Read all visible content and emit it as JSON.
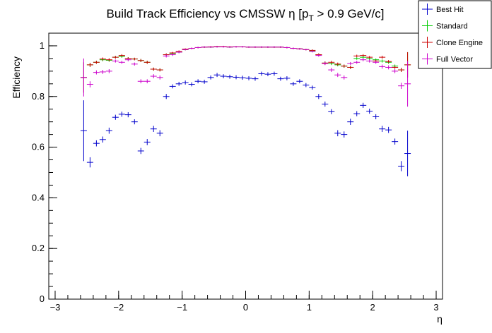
{
  "chart_data": {
    "type": "scatter",
    "title_main": "Build Track Efficiency vs CMSSW η [p",
    "title_sub": "T",
    "title_tail": " > 0.9 GeV/c]",
    "xlabel": "η",
    "ylabel": "Efficiency",
    "xlim": [
      -3.1,
      3.1
    ],
    "ylim": [
      0,
      1.05
    ],
    "xticks": [
      -3,
      -2,
      -1,
      0,
      1,
      2,
      3
    ],
    "xtick_labels": [
      "−3",
      "−2",
      "−1",
      "0",
      "1",
      "2",
      "3"
    ],
    "yticks": [
      0,
      0.2,
      0.4,
      0.6,
      0.8,
      1
    ],
    "ytick_labels": [
      "0",
      "0.2",
      "0.4",
      "0.6",
      "0.8",
      "1"
    ],
    "grid": false,
    "legend_position": "top-right",
    "x": [
      -2.55,
      -2.45,
      -2.35,
      -2.25,
      -2.15,
      -2.05,
      -1.95,
      -1.85,
      -1.75,
      -1.65,
      -1.55,
      -1.45,
      -1.35,
      -1.25,
      -1.15,
      -1.05,
      -0.95,
      -0.85,
      -0.75,
      -0.65,
      -0.55,
      -0.45,
      -0.35,
      -0.25,
      -0.15,
      -0.05,
      0.05,
      0.15,
      0.25,
      0.35,
      0.45,
      0.55,
      0.65,
      0.75,
      0.85,
      0.95,
      1.05,
      1.15,
      1.25,
      1.35,
      1.45,
      1.55,
      1.65,
      1.75,
      1.85,
      1.95,
      2.05,
      2.15,
      2.25,
      2.35,
      2.45,
      2.55
    ],
    "series": [
      {
        "name": "Best Hit",
        "color": "#0000cc",
        "values": [
          0.665,
          0.54,
          0.615,
          0.63,
          0.665,
          0.718,
          0.73,
          0.728,
          0.7,
          0.585,
          0.62,
          0.672,
          0.655,
          0.8,
          0.84,
          0.85,
          0.855,
          0.848,
          0.86,
          0.858,
          0.875,
          0.885,
          0.88,
          0.878,
          0.876,
          0.874,
          0.872,
          0.87,
          0.89,
          0.888,
          0.89,
          0.87,
          0.872,
          0.85,
          0.86,
          0.845,
          0.835,
          0.8,
          0.77,
          0.74,
          0.655,
          0.65,
          0.7,
          0.732,
          0.765,
          0.742,
          0.72,
          0.672,
          0.668,
          0.622,
          0.525,
          0.575
        ],
        "errors": [
          0.12,
          0.02,
          0.012,
          0.012,
          0.012,
          0.01,
          0.01,
          0.01,
          0.01,
          0.012,
          0.012,
          0.012,
          0.012,
          0.01,
          0.008,
          0.008,
          0.008,
          0.008,
          0.008,
          0.008,
          0.008,
          0.008,
          0.008,
          0.008,
          0.008,
          0.008,
          0.008,
          0.008,
          0.008,
          0.008,
          0.008,
          0.008,
          0.008,
          0.008,
          0.008,
          0.008,
          0.008,
          0.01,
          0.01,
          0.01,
          0.012,
          0.012,
          0.012,
          0.01,
          0.01,
          0.01,
          0.01,
          0.012,
          0.012,
          0.012,
          0.02,
          0.09
        ]
      },
      {
        "name": "Standard",
        "color": "#00cc00",
        "values": [
          0.875,
          0.925,
          0.935,
          0.945,
          0.943,
          0.955,
          0.958,
          0.95,
          0.948,
          0.942,
          0.935,
          0.908,
          0.905,
          0.965,
          0.97,
          0.975,
          0.985,
          0.99,
          0.993,
          0.995,
          0.995,
          0.996,
          0.997,
          0.995,
          0.996,
          0.996,
          0.995,
          0.995,
          0.995,
          0.995,
          0.995,
          0.995,
          0.993,
          0.99,
          0.988,
          0.985,
          0.98,
          0.965,
          0.932,
          0.93,
          0.925,
          0.92,
          0.915,
          0.95,
          0.955,
          0.95,
          0.945,
          0.94,
          0.935,
          0.92,
          0.905,
          0.925
        ],
        "errors": [
          0.06,
          0.008,
          0.006,
          0.006,
          0.006,
          0.005,
          0.005,
          0.005,
          0.005,
          0.006,
          0.006,
          0.006,
          0.006,
          0.005,
          0.004,
          0.004,
          0.003,
          0.003,
          0.003,
          0.003,
          0.003,
          0.003,
          0.003,
          0.003,
          0.003,
          0.003,
          0.003,
          0.003,
          0.003,
          0.003,
          0.003,
          0.003,
          0.003,
          0.003,
          0.003,
          0.003,
          0.004,
          0.005,
          0.006,
          0.006,
          0.006,
          0.006,
          0.006,
          0.005,
          0.005,
          0.005,
          0.005,
          0.006,
          0.006,
          0.006,
          0.008,
          0.05
        ]
      },
      {
        "name": "Clone Engine",
        "color": "#cc0000",
        "values": [
          0.875,
          0.925,
          0.935,
          0.948,
          0.945,
          0.955,
          0.962,
          0.95,
          0.948,
          0.942,
          0.935,
          0.908,
          0.905,
          0.965,
          0.972,
          0.978,
          0.987,
          0.99,
          0.993,
          0.995,
          0.996,
          0.997,
          0.997,
          0.996,
          0.996,
          0.996,
          0.995,
          0.995,
          0.995,
          0.995,
          0.995,
          0.995,
          0.993,
          0.99,
          0.988,
          0.985,
          0.982,
          0.965,
          0.932,
          0.935,
          0.928,
          0.92,
          0.915,
          0.96,
          0.962,
          0.955,
          0.94,
          0.955,
          0.938,
          0.915,
          0.905,
          0.925
        ],
        "errors": [
          0.06,
          0.008,
          0.006,
          0.006,
          0.006,
          0.005,
          0.005,
          0.005,
          0.005,
          0.006,
          0.006,
          0.006,
          0.006,
          0.005,
          0.004,
          0.004,
          0.003,
          0.003,
          0.003,
          0.003,
          0.003,
          0.003,
          0.003,
          0.003,
          0.003,
          0.003,
          0.003,
          0.003,
          0.003,
          0.003,
          0.003,
          0.003,
          0.003,
          0.003,
          0.003,
          0.003,
          0.004,
          0.005,
          0.006,
          0.006,
          0.006,
          0.006,
          0.006,
          0.005,
          0.005,
          0.005,
          0.005,
          0.006,
          0.006,
          0.006,
          0.008,
          0.05
        ]
      },
      {
        "name": "Full Vector",
        "color": "#cc00cc",
        "values": [
          0.875,
          0.848,
          0.895,
          0.897,
          0.9,
          0.94,
          0.935,
          0.945,
          0.928,
          0.86,
          0.86,
          0.88,
          0.875,
          0.96,
          0.965,
          0.975,
          0.985,
          0.99,
          0.993,
          0.995,
          0.995,
          0.996,
          0.996,
          0.995,
          0.996,
          0.996,
          0.995,
          0.995,
          0.995,
          0.995,
          0.995,
          0.995,
          0.993,
          0.99,
          0.988,
          0.985,
          0.978,
          0.962,
          0.93,
          0.905,
          0.885,
          0.875,
          0.93,
          0.935,
          0.945,
          0.94,
          0.935,
          0.918,
          0.915,
          0.9,
          0.842,
          0.85
        ],
        "errors": [
          0.075,
          0.012,
          0.008,
          0.008,
          0.008,
          0.006,
          0.006,
          0.006,
          0.006,
          0.008,
          0.008,
          0.008,
          0.008,
          0.006,
          0.005,
          0.004,
          0.003,
          0.003,
          0.003,
          0.003,
          0.003,
          0.003,
          0.003,
          0.003,
          0.003,
          0.003,
          0.003,
          0.003,
          0.003,
          0.003,
          0.003,
          0.003,
          0.003,
          0.003,
          0.003,
          0.003,
          0.004,
          0.005,
          0.006,
          0.008,
          0.008,
          0.008,
          0.006,
          0.006,
          0.006,
          0.006,
          0.006,
          0.008,
          0.008,
          0.008,
          0.012,
          0.09
        ]
      }
    ]
  }
}
